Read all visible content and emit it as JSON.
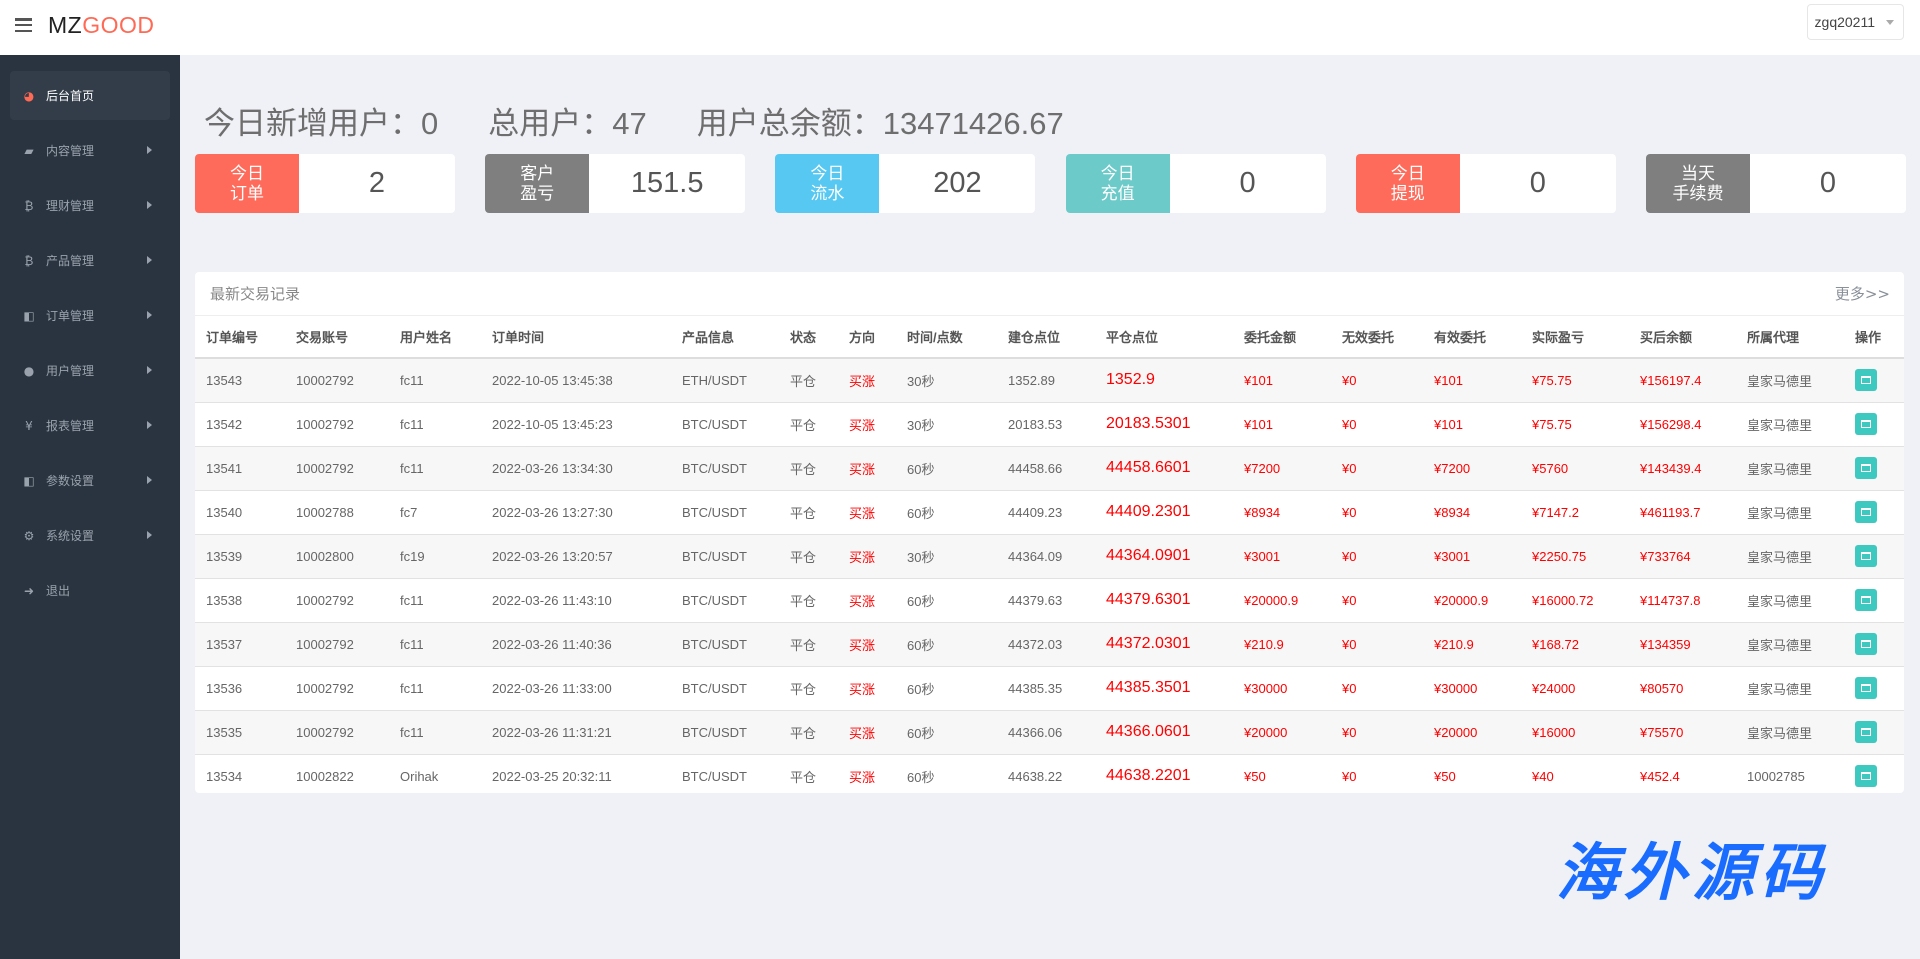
{
  "header": {
    "logo_part1": "MZ",
    "logo_part2": "GOOD",
    "user": "zgq20211"
  },
  "sidebar": {
    "items": [
      {
        "label": "后台首页",
        "icon": "dashboard-icon",
        "glyph": "◕",
        "active": true
      },
      {
        "label": "内容管理",
        "icon": "book-icon",
        "glyph": "▰"
      },
      {
        "label": "理财管理",
        "icon": "bitcoin-icon",
        "glyph": "₿"
      },
      {
        "label": "产品管理",
        "icon": "bitcoin-icon",
        "glyph": "₿"
      },
      {
        "label": "订单管理",
        "icon": "copy-icon",
        "glyph": "◧"
      },
      {
        "label": "用户管理",
        "icon": "user-icon",
        "glyph": "●"
      },
      {
        "label": "报表管理",
        "icon": "yen-icon",
        "glyph": "¥"
      },
      {
        "label": "参数设置",
        "icon": "copy-icon",
        "glyph": "◧"
      },
      {
        "label": "系统设置",
        "icon": "gears-icon",
        "glyph": "⚙"
      },
      {
        "label": "退出",
        "icon": "sign-out-icon",
        "glyph": "➜"
      }
    ]
  },
  "summary": {
    "new_users": "今日新增用户：0",
    "total_users": "总用户：47",
    "total_balance": "用户总余额：13471426.67"
  },
  "cards": [
    {
      "label": "今日\n订单",
      "value": "2",
      "color": "#ff6b5b"
    },
    {
      "label": "客户\n盈亏",
      "value": "151.5",
      "color": "#7f7f7f"
    },
    {
      "label": "今日\n流水",
      "value": "202",
      "color": "#56c8f1"
    },
    {
      "label": "今日\n充值",
      "value": "0",
      "color": "#6ccac9"
    },
    {
      "label": "今日\n提现",
      "value": "0",
      "color": "#ff6b5b"
    },
    {
      "label": "当天\n手续费",
      "value": "0",
      "color": "#7f7f7f"
    }
  ],
  "trades": {
    "title": "最新交易记录",
    "more": "更多>>",
    "columns": [
      "订单编号",
      "交易账号",
      "用户姓名",
      "订单时间",
      "产品信息",
      "状态",
      "方向",
      "时间/点数",
      "建仓点位",
      "平仓点位",
      "委托金额",
      "无效委托",
      "有效委托",
      "实际盈亏",
      "买后余额",
      "所属代理",
      "操作"
    ],
    "rows": [
      [
        "13543",
        "10002792",
        "fc11",
        "2022-10-05 13:45:38",
        "ETH/USDT",
        "平仓",
        "买涨",
        "30秒",
        "1352.89",
        "1352.9",
        "¥101",
        "¥0",
        "¥101",
        "¥75.75",
        "¥156197.4",
        "皇家马德里"
      ],
      [
        "13542",
        "10002792",
        "fc11",
        "2022-10-05 13:45:23",
        "BTC/USDT",
        "平仓",
        "买涨",
        "30秒",
        "20183.53",
        "20183.5301",
        "¥101",
        "¥0",
        "¥101",
        "¥75.75",
        "¥156298.4",
        "皇家马德里"
      ],
      [
        "13541",
        "10002792",
        "fc11",
        "2022-03-26 13:34:30",
        "BTC/USDT",
        "平仓",
        "买涨",
        "60秒",
        "44458.66",
        "44458.6601",
        "¥7200",
        "¥0",
        "¥7200",
        "¥5760",
        "¥143439.4",
        "皇家马德里"
      ],
      [
        "13540",
        "10002788",
        "fc7",
        "2022-03-26 13:27:30",
        "BTC/USDT",
        "平仓",
        "买涨",
        "60秒",
        "44409.23",
        "44409.2301",
        "¥8934",
        "¥0",
        "¥8934",
        "¥7147.2",
        "¥461193.7",
        "皇家马德里"
      ],
      [
        "13539",
        "10002800",
        "fc19",
        "2022-03-26 13:20:57",
        "BTC/USDT",
        "平仓",
        "买涨",
        "30秒",
        "44364.09",
        "44364.0901",
        "¥3001",
        "¥0",
        "¥3001",
        "¥2250.75",
        "¥733764",
        "皇家马德里"
      ],
      [
        "13538",
        "10002792",
        "fc11",
        "2022-03-26 11:43:10",
        "BTC/USDT",
        "平仓",
        "买涨",
        "60秒",
        "44379.63",
        "44379.6301",
        "¥20000.9",
        "¥0",
        "¥20000.9",
        "¥16000.72",
        "¥114737.8",
        "皇家马德里"
      ],
      [
        "13537",
        "10002792",
        "fc11",
        "2022-03-26 11:40:36",
        "BTC/USDT",
        "平仓",
        "买涨",
        "60秒",
        "44372.03",
        "44372.0301",
        "¥210.9",
        "¥0",
        "¥210.9",
        "¥168.72",
        "¥134359",
        "皇家马德里"
      ],
      [
        "13536",
        "10002792",
        "fc11",
        "2022-03-26 11:33:00",
        "BTC/USDT",
        "平仓",
        "买涨",
        "60秒",
        "44385.35",
        "44385.3501",
        "¥30000",
        "¥0",
        "¥30000",
        "¥24000",
        "¥80570",
        "皇家马德里"
      ],
      [
        "13535",
        "10002792",
        "fc11",
        "2022-03-26 11:31:21",
        "BTC/USDT",
        "平仓",
        "买涨",
        "60秒",
        "44366.06",
        "44366.0601",
        "¥20000",
        "¥0",
        "¥20000",
        "¥16000",
        "¥75570",
        "皇家马德里"
      ],
      [
        "13534",
        "10002822",
        "Orihak",
        "2022-03-25 20:32:11",
        "BTC/USDT",
        "平仓",
        "买涨",
        "60秒",
        "44638.22",
        "44638.2201",
        "¥50",
        "¥0",
        "¥50",
        "¥40",
        "¥452.4",
        "10002785"
      ]
    ]
  },
  "watermark": "海外源码"
}
